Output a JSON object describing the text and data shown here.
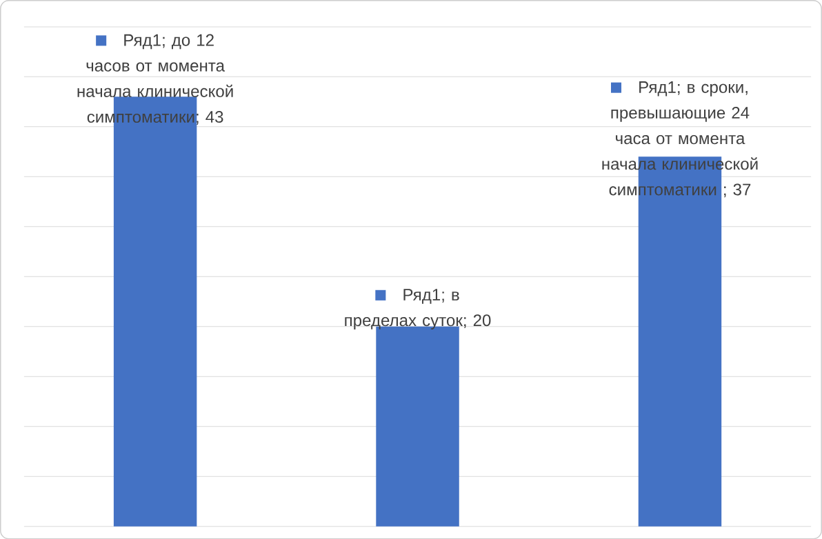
{
  "chart_data": {
    "type": "bar",
    "categories": [
      null,
      null,
      null
    ],
    "values": [
      43,
      20,
      37
    ],
    "color": "#4472c4",
    "value_labels": [
      "Ряд1; до 12 часов от момента начала клинической симптоматики; 43",
      "Ряд1; в пределах суток; 20",
      "Ряд1; в сроки, превышающие 24 часа от момента начала клинической симптоматики ; 37"
    ],
    "ylim": [
      0,
      50
    ],
    "yticks": [
      {
        "value": 0,
        "label": null
      },
      {
        "value": 5,
        "label": null
      },
      {
        "value": 10,
        "label": null
      },
      {
        "value": 15,
        "label": null
      },
      {
        "value": 20,
        "label": null
      },
      {
        "value": 25,
        "label": null
      },
      {
        "value": 30,
        "label": null
      },
      {
        "value": 35,
        "label": null
      },
      {
        "value": 40,
        "label": null
      },
      {
        "value": 45,
        "label": null
      },
      {
        "value": 50,
        "label": null
      }
    ],
    "grid": "y"
  }
}
